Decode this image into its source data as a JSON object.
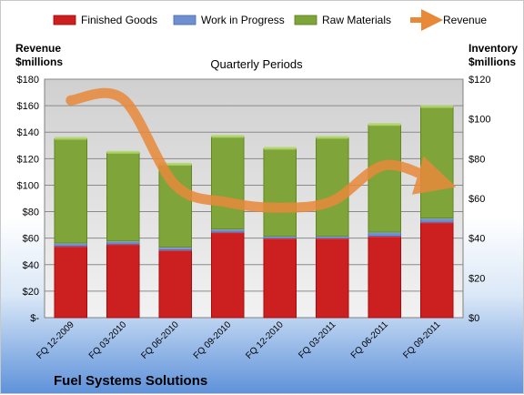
{
  "chart_data": {
    "type": "bar",
    "stacked": true,
    "company": "Fuel Systems Solutions",
    "plot_title": "Quarterly Periods",
    "left_axis_title": [
      "Revenue",
      "$millions"
    ],
    "right_axis_title": [
      "Inventory",
      "$millions"
    ],
    "categories": [
      "FQ 12-2009",
      "FQ 03-2010",
      "FQ 06-2010",
      "FQ 09-2010",
      "FQ 12-2010",
      "FQ 03-2011",
      "FQ 06-2011",
      "FQ 09-2011"
    ],
    "left_axis": {
      "min": 0,
      "max": 180,
      "step": 20,
      "tick_labels": [
        "$-",
        "$20",
        "$40",
        "$60",
        "$80",
        "$100",
        "$120",
        "$140",
        "$160",
        "$180"
      ]
    },
    "right_axis": {
      "min": 0,
      "max": 120,
      "step": 20,
      "tick_labels": [
        "$0",
        "$20",
        "$40",
        "$60",
        "$80",
        "$100",
        "$120"
      ]
    },
    "series": [
      {
        "name": "Finished Goods",
        "axis": "right",
        "color": "#cc2020",
        "values": [
          36,
          37,
          34,
          43,
          40,
          40,
          41,
          48
        ]
      },
      {
        "name": "Work in Progress",
        "axis": "right",
        "color": "#6f8fd0",
        "values": [
          1.5,
          1.5,
          1.5,
          1.5,
          1,
          1,
          2,
          2
        ]
      },
      {
        "name": "Raw Materials",
        "axis": "right",
        "color": "#7fa53a",
        "values": [
          52.5,
          44.5,
          41.5,
          46.5,
          44,
          49.5,
          54,
          56
        ]
      },
      {
        "name": "Revenue",
        "axis": "left",
        "type": "line",
        "color": "#e8893a",
        "values": [
          164,
          165,
          100,
          87,
          83,
          88,
          115,
          103
        ]
      }
    ],
    "legend_position": "top",
    "grid": true
  }
}
